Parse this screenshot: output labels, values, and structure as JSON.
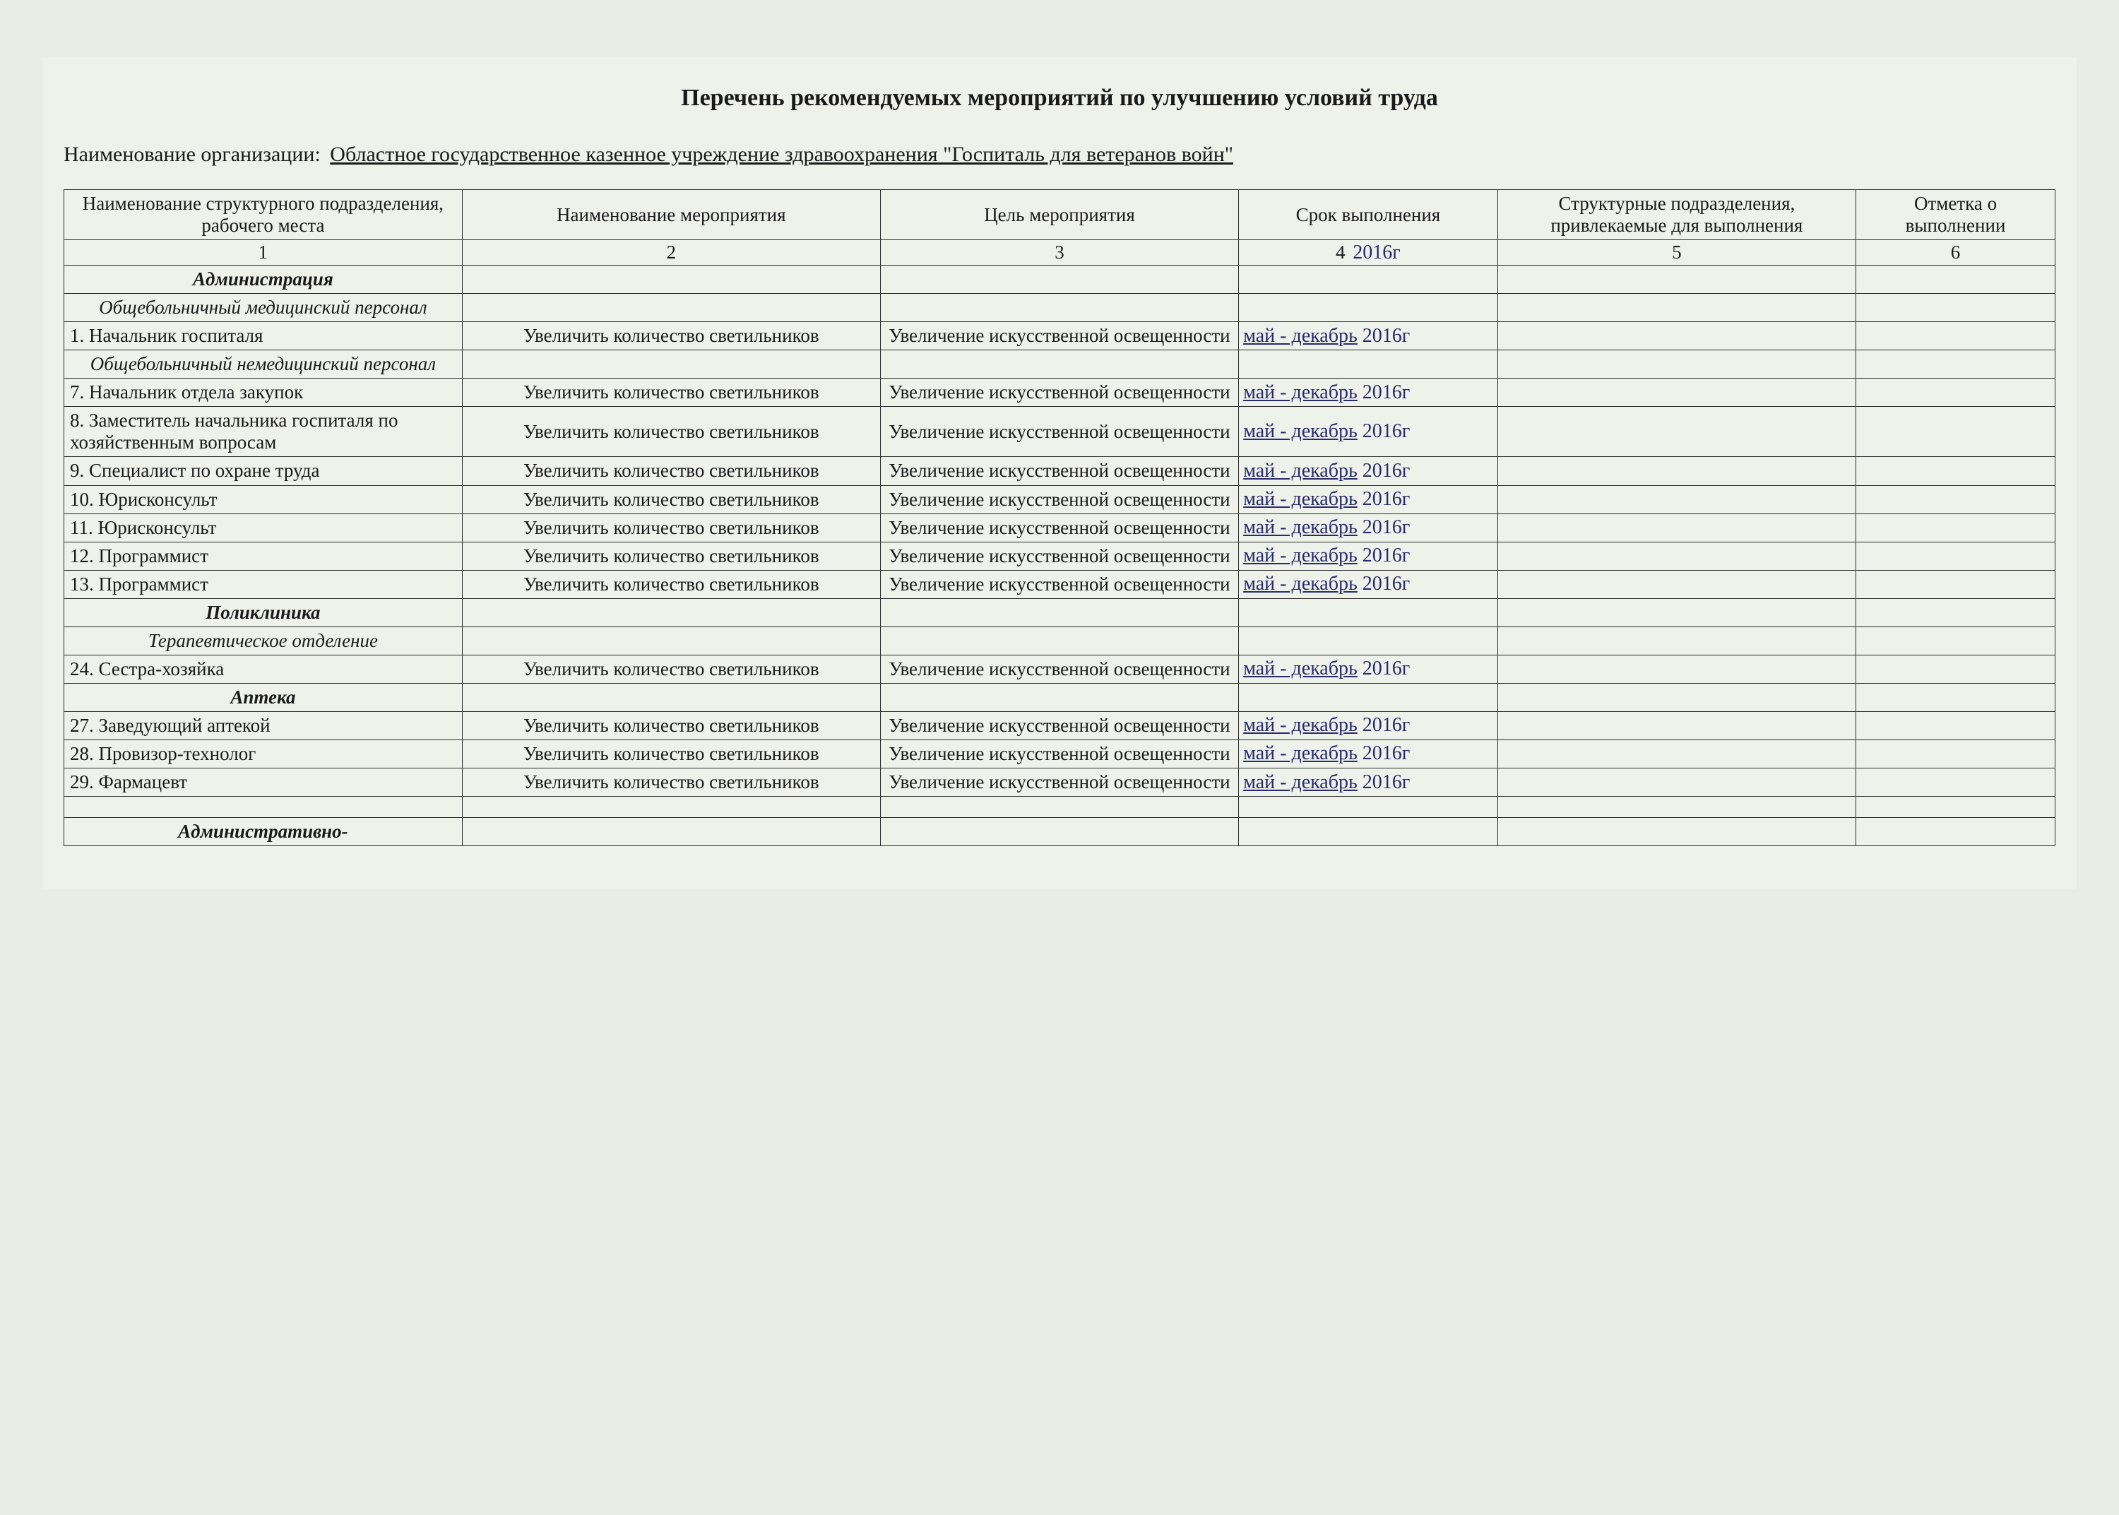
{
  "title": "Перечень рекомендуемых мероприятий по улучшению условий труда",
  "orgLabel": "Наименование организации:",
  "orgName": "Областное государственное казенное учреждение здравоохранения \"Госпиталь для ветеранов войн\"",
  "headers": {
    "c1": "Наименование структурного подразделения, рабочего места",
    "c2": "Наименование мероприятия",
    "c3": "Цель мероприятия",
    "c4": "Срок выполнения",
    "c5": "Структурные подразделения, привлекаемые для выполнения",
    "c6": "Отметка о выполнении"
  },
  "numRow": {
    "n1": "1",
    "n2": "2",
    "n3": "3",
    "n4": "4",
    "n4hw": "2016г",
    "n5": "5",
    "n6": "6"
  },
  "activity": "Увеличить количество светильников",
  "goal": "Увеличение искусственной освещенности",
  "hwDate": "май - декабрь",
  "hwYear": "2016г",
  "rows": [
    {
      "type": "section",
      "label": "Администрация"
    },
    {
      "type": "subsection",
      "label": "Общебольничный медицинский персонал"
    },
    {
      "type": "data",
      "name": "1. Начальник госпиталя"
    },
    {
      "type": "subsection",
      "label": "Общебольничный немедицинский персонал"
    },
    {
      "type": "data",
      "name": "7. Начальник отдела закупок"
    },
    {
      "type": "data",
      "name": "8. Заместитель начальника госпиталя по хозяйственным вопросам"
    },
    {
      "type": "data",
      "name": "9. Специалист по охране труда"
    },
    {
      "type": "data",
      "name": "10. Юрисконсульт"
    },
    {
      "type": "data",
      "name": "11. Юрисконсульт"
    },
    {
      "type": "data",
      "name": "12. Программист"
    },
    {
      "type": "data",
      "name": "13. Программист"
    },
    {
      "type": "section",
      "label": "Поликлиника"
    },
    {
      "type": "subsection",
      "label": "Терапевтическое отделение"
    },
    {
      "type": "data",
      "name": "24. Сестра-хозяйка"
    },
    {
      "type": "section",
      "label": "Аптека"
    },
    {
      "type": "data",
      "name": "27. Заведующий аптекой"
    },
    {
      "type": "data",
      "name": "28. Провизор-технолог"
    },
    {
      "type": "data",
      "name": "29. Фармацевт"
    },
    {
      "type": "empty"
    },
    {
      "type": "section",
      "label": "Административно-"
    }
  ],
  "style": {
    "bg": "#eef2ea",
    "border": "#2a2a2a",
    "text": "#1a1a1a",
    "handwrittenColor": "#2a2a6a",
    "titleFontSize": 34,
    "cellFontSize": 27
  }
}
